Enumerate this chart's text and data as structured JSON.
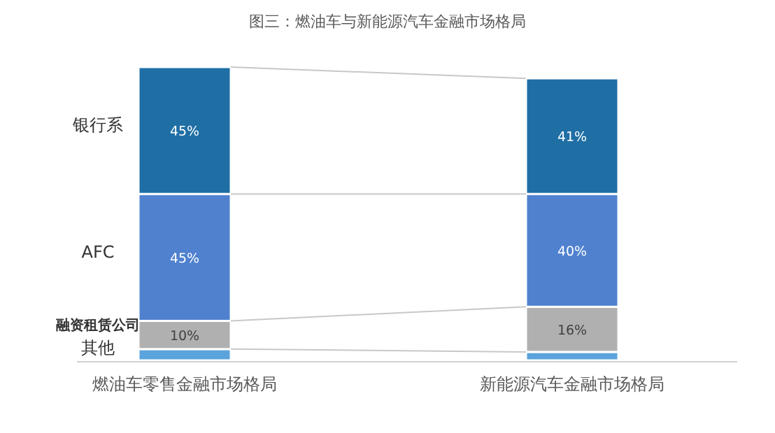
{
  "chart_data": {
    "type": "bar",
    "stacked": true,
    "title": "图三：燃油车与新能源汽车金融市场格局",
    "categories": [
      "燃油车零售金融市场格局",
      "新能源汽车金融市场格局"
    ],
    "legend": "left",
    "series": [
      {
        "name": "其他",
        "color": "#5ba3dc",
        "values": [
          4,
          3
        ],
        "value_labels": [
          null,
          null
        ]
      },
      {
        "name": "融资租赁公司",
        "color": "#b0b0b0",
        "values": [
          10,
          16
        ],
        "value_labels": [
          "10%",
          "16%"
        ]
      },
      {
        "name": "AFC",
        "color": "#4f81cf",
        "values": [
          45,
          40
        ],
        "value_labels": [
          "45%",
          "40%"
        ]
      },
      {
        "name": "银行系",
        "color": "#1f6fa5",
        "values": [
          45,
          41
        ],
        "value_labels": [
          "45%",
          "41%"
        ]
      }
    ]
  }
}
